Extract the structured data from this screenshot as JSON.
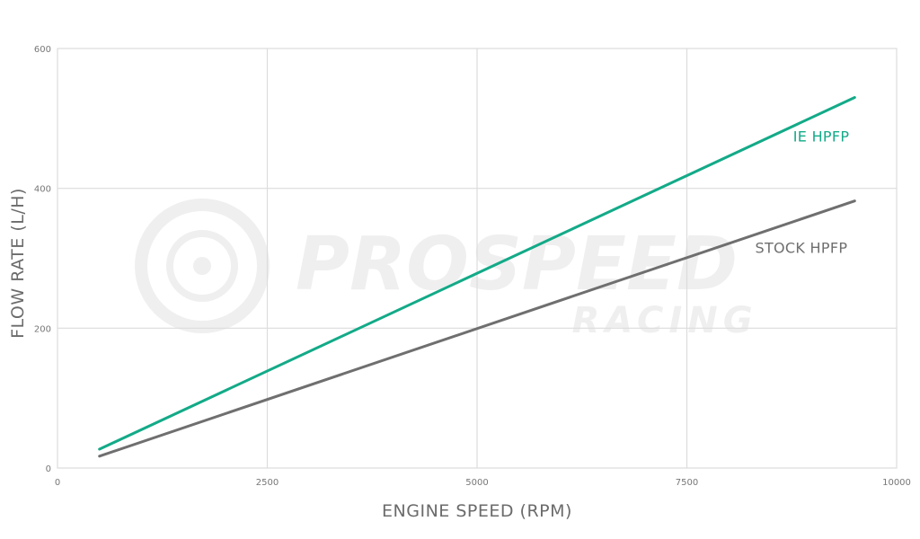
{
  "watermark": {
    "brand": "PROSPEED",
    "subbrand": "RACING"
  },
  "chart_data": {
    "type": "line",
    "title": "",
    "xlabel": "ENGINE SPEED (RPM)",
    "ylabel": "FLOW RATE (L/H)",
    "xlim": [
      0,
      10000
    ],
    "ylim": [
      0,
      600
    ],
    "x_ticks": [
      "0",
      "2500",
      "5000",
      "7500",
      "10000"
    ],
    "y_ticks": [
      "0",
      "200",
      "400",
      "600"
    ],
    "grid": true,
    "legend": "inline labels at line ends",
    "series": [
      {
        "name": "IE HPFP",
        "color": "#13aa88",
        "x": [
          500,
          9500
        ],
        "y": [
          27,
          530
        ]
      },
      {
        "name": "STOCK HPFP",
        "color": "#6f6f70",
        "x": [
          500,
          9500
        ],
        "y": [
          17,
          382
        ]
      }
    ]
  }
}
